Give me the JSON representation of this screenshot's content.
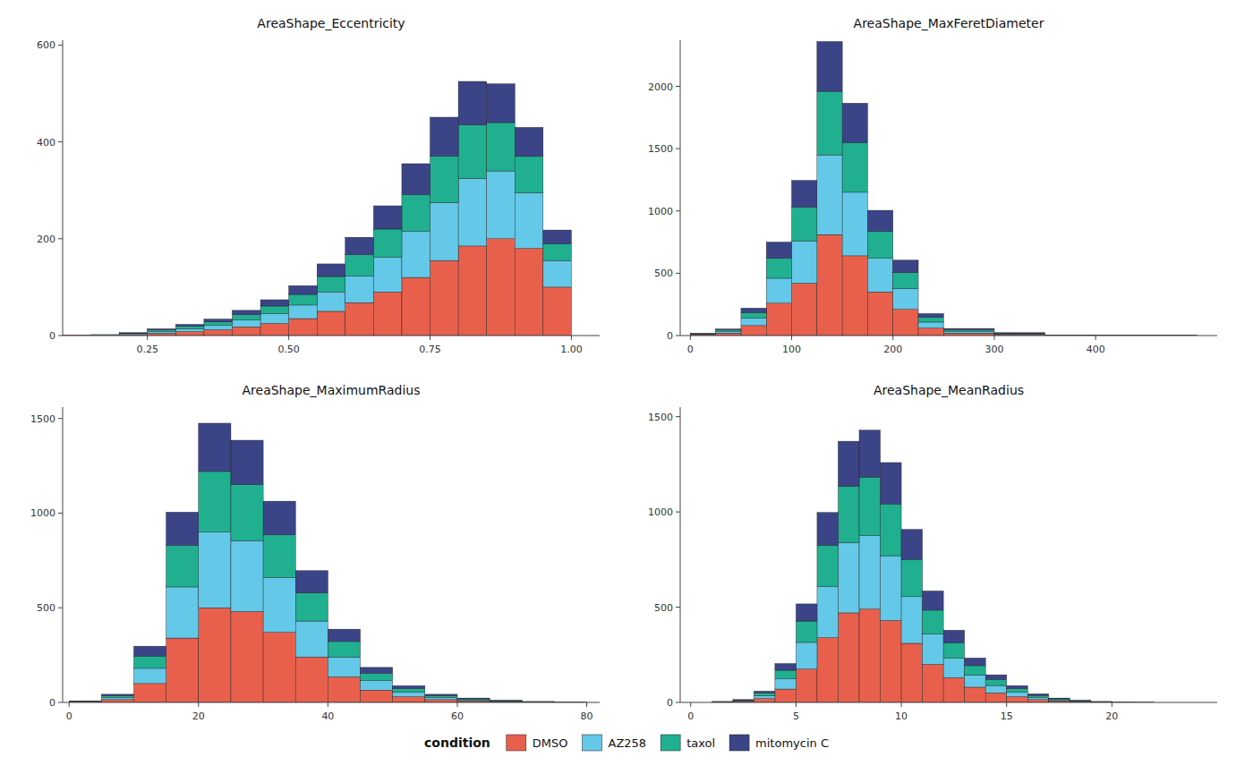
{
  "chart_data": [
    {
      "type": "histogram",
      "title": "AreaShape_Eccentricity",
      "stacked": true,
      "legend": "bottom",
      "legend_title": "condition",
      "bins": [
        0.1,
        0.15,
        0.2,
        0.25,
        0.3,
        0.35,
        0.4,
        0.45,
        0.5,
        0.55,
        0.6,
        0.65,
        0.7,
        0.75,
        0.8,
        0.85,
        0.9,
        0.95,
        1.0
      ],
      "series": [
        {
          "name": "DMSO",
          "color": "#E8604C",
          "values": [
            1,
            1,
            2,
            5,
            8,
            12,
            18,
            25,
            35,
            50,
            68,
            90,
            120,
            155,
            185,
            200,
            180,
            100
          ]
        },
        {
          "name": "AZ258",
          "color": "#64C8E8",
          "values": [
            0,
            1,
            2,
            4,
            6,
            9,
            14,
            20,
            28,
            40,
            55,
            72,
            95,
            120,
            140,
            140,
            115,
            55
          ]
        },
        {
          "name": "taxol",
          "color": "#20B090",
          "values": [
            0,
            0,
            1,
            3,
            5,
            7,
            11,
            16,
            22,
            32,
            44,
            58,
            76,
            96,
            110,
            100,
            75,
            35
          ]
        },
        {
          "name": "mitomycin C",
          "color": "#3C4488",
          "values": [
            0,
            0,
            1,
            2,
            4,
            6,
            9,
            13,
            18,
            26,
            36,
            48,
            64,
            80,
            90,
            80,
            60,
            28
          ]
        }
      ],
      "xlim": [
        0.1,
        1.05
      ],
      "ylim": [
        0,
        610
      ],
      "xticks": [
        0.25,
        {
          "value": 0.5,
          "label": "0.50"
        },
        0.75,
        {
          "value": 1,
          "label": "1.00"
        }
      ],
      "yticks": [
        0,
        200,
        400,
        600
      ]
    },
    {
      "type": "histogram",
      "title": "AreaShape_MaxFeretDiameter",
      "stacked": true,
      "bins": [
        0,
        25,
        50,
        75,
        100,
        125,
        150,
        175,
        200,
        225,
        250,
        300,
        350,
        400,
        500
      ],
      "series": [
        {
          "name": "DMSO",
          "color": "#E8604C",
          "values": [
            8,
            20,
            80,
            260,
            420,
            810,
            640,
            350,
            210,
            60,
            20,
            8,
            2,
            1
          ]
        },
        {
          "name": "AZ258",
          "color": "#64C8E8",
          "values": [
            5,
            15,
            60,
            200,
            340,
            640,
            510,
            270,
            165,
            48,
            15,
            6,
            1,
            1
          ]
        },
        {
          "name": "taxol",
          "color": "#20B090",
          "values": [
            3,
            10,
            45,
            160,
            270,
            510,
            400,
            215,
            130,
            38,
            12,
            5,
            1,
            0
          ]
        },
        {
          "name": "mitomycin C",
          "color": "#3C4488",
          "values": [
            2,
            8,
            35,
            130,
            215,
            400,
            315,
            170,
            100,
            30,
            10,
            4,
            1,
            0
          ]
        }
      ],
      "xlim": [
        -10,
        520
      ],
      "ylim": [
        0,
        2370
      ],
      "xticks": [
        0,
        100,
        200,
        300,
        400
      ],
      "yticks": [
        0,
        500,
        1000,
        1500,
        2000
      ]
    },
    {
      "type": "histogram",
      "title": "AreaShape_MaximumRadius",
      "stacked": true,
      "bins": [
        0,
        5,
        10,
        15,
        20,
        25,
        30,
        35,
        40,
        45,
        50,
        55,
        60,
        65,
        70,
        75,
        80
      ],
      "series": [
        {
          "name": "DMSO",
          "color": "#E8604C",
          "values": [
            3,
            15,
            100,
            340,
            500,
            480,
            370,
            240,
            135,
            65,
            30,
            15,
            8,
            4,
            2,
            1
          ]
        },
        {
          "name": "AZ258",
          "color": "#64C8E8",
          "values": [
            2,
            12,
            80,
            270,
            400,
            375,
            290,
            190,
            105,
            50,
            24,
            12,
            6,
            3,
            1,
            1
          ]
        },
        {
          "name": "taxol",
          "color": "#20B090",
          "values": [
            1,
            9,
            65,
            220,
            320,
            295,
            225,
            148,
            82,
            39,
            19,
            9,
            5,
            2,
            1,
            0
          ]
        },
        {
          "name": "mitomycin C",
          "color": "#3C4488",
          "values": [
            1,
            7,
            52,
            175,
            255,
            235,
            178,
            118,
            65,
            31,
            15,
            7,
            4,
            2,
            1,
            0
          ]
        }
      ],
      "xlim": [
        -1,
        82
      ],
      "ylim": [
        0,
        1560
      ],
      "xticks": [
        0,
        20,
        40,
        60,
        80
      ],
      "yticks": [
        0,
        500,
        1000,
        1500
      ]
    },
    {
      "type": "histogram",
      "title": "AreaShape_MeanRadius",
      "stacked": true,
      "bins": [
        0,
        1,
        2,
        3,
        4,
        5,
        6,
        7,
        8,
        9,
        10,
        11,
        12,
        13,
        14,
        15,
        16,
        17,
        18,
        19,
        20,
        21,
        22,
        23,
        24,
        25
      ],
      "series": [
        {
          "name": "DMSO",
          "color": "#E8604C",
          "values": [
            0,
            2,
            5,
            20,
            70,
            175,
            340,
            470,
            490,
            430,
            310,
            200,
            130,
            80,
            50,
            30,
            15,
            8,
            4,
            2,
            1,
            1,
            0,
            0,
            0
          ]
        },
        {
          "name": "AZ258",
          "color": "#64C8E8",
          "values": [
            0,
            1,
            4,
            16,
            55,
            140,
            270,
            370,
            385,
            340,
            245,
            158,
            102,
            63,
            39,
            24,
            12,
            6,
            3,
            1,
            1,
            0,
            0,
            0,
            0
          ]
        },
        {
          "name": "taxol",
          "color": "#20B090",
          "values": [
            0,
            1,
            3,
            13,
            44,
            112,
            215,
            295,
            308,
            272,
            196,
            126,
            82,
            50,
            31,
            19,
            10,
            5,
            2,
            1,
            0,
            0,
            0,
            0,
            0
          ]
        },
        {
          "name": "mitomycin C",
          "color": "#3C4488",
          "values": [
            0,
            1,
            3,
            10,
            35,
            90,
            172,
            236,
            246,
            217,
            157,
            101,
            65,
            40,
            25,
            15,
            8,
            4,
            2,
            1,
            0,
            0,
            0,
            0,
            0
          ]
        }
      ],
      "xlim": [
        -0.5,
        25
      ],
      "ylim": [
        0,
        1550
      ],
      "xticks": [
        0,
        5,
        10,
        15,
        20
      ],
      "yticks": [
        0,
        500,
        1000,
        1500
      ]
    }
  ]
}
